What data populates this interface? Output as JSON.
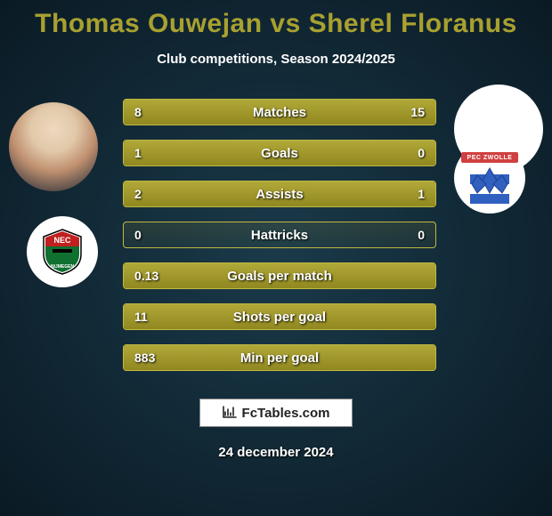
{
  "title": "Thomas Ouwejan vs Sherel Floranus",
  "subtitle": "Club competitions, Season 2024/2025",
  "date": "24 december 2024",
  "branding": "FcTables.com",
  "colors": {
    "accent": "#a8a030",
    "bar_fill_top": "#b0a838",
    "bar_fill_bottom": "#908820",
    "bar_border": "#c0b840",
    "bg_center": "#1a3a4a",
    "bg_edge": "#0a1a24",
    "text": "#ffffff"
  },
  "left_badge": "NEC",
  "right_badge": "PEC ZWOLLE",
  "rows": [
    {
      "label": "Matches",
      "left": "8",
      "right": "15",
      "left_pct": 35,
      "right_pct": 65
    },
    {
      "label": "Goals",
      "left": "1",
      "right": "0",
      "left_pct": 100,
      "right_pct": 0
    },
    {
      "label": "Assists",
      "left": "2",
      "right": "1",
      "left_pct": 67,
      "right_pct": 33
    },
    {
      "label": "Hattricks",
      "left": "0",
      "right": "0",
      "left_pct": 0,
      "right_pct": 0
    },
    {
      "label": "Goals per match",
      "left": "0.13",
      "right": "",
      "left_pct": 100,
      "right_pct": 0
    },
    {
      "label": "Shots per goal",
      "left": "11",
      "right": "",
      "left_pct": 100,
      "right_pct": 0
    },
    {
      "label": "Min per goal",
      "left": "883",
      "right": "",
      "left_pct": 100,
      "right_pct": 0
    }
  ]
}
